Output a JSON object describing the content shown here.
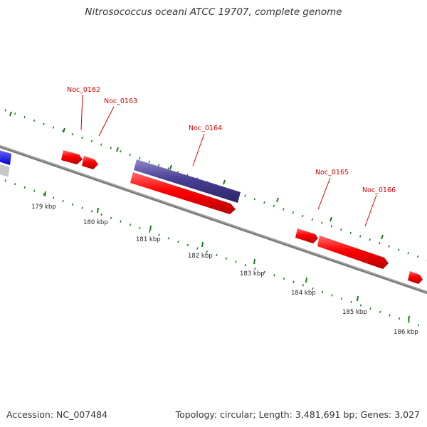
{
  "title": "Nitrosococcus oceani ATCC 19707, complete genome",
  "footer": {
    "accession": "Accession: NC_007484",
    "summary": "Topology: circular; Length: 3,481,691 bp; Genes: 3,027"
  },
  "colors": {
    "forward_gene": "#ff0000",
    "reverse_gene": "#4a3f94",
    "cds_blue": "#0000ff",
    "backbone": "#7a7a7a",
    "ticks": "#1a7a1a",
    "label": "#dd0000"
  },
  "map": {
    "axis_unit": "kbp",
    "tick_labels": [
      "179 kbp",
      "180 kbp",
      "181 kbp",
      "182 kbp",
      "183 kbp",
      "184 kbp",
      "185 kbp",
      "186 kbp"
    ],
    "gene_labels": [
      "Noc_0162",
      "Noc_0163",
      "Noc_0164",
      "Noc_0165",
      "Noc_0166"
    ]
  }
}
